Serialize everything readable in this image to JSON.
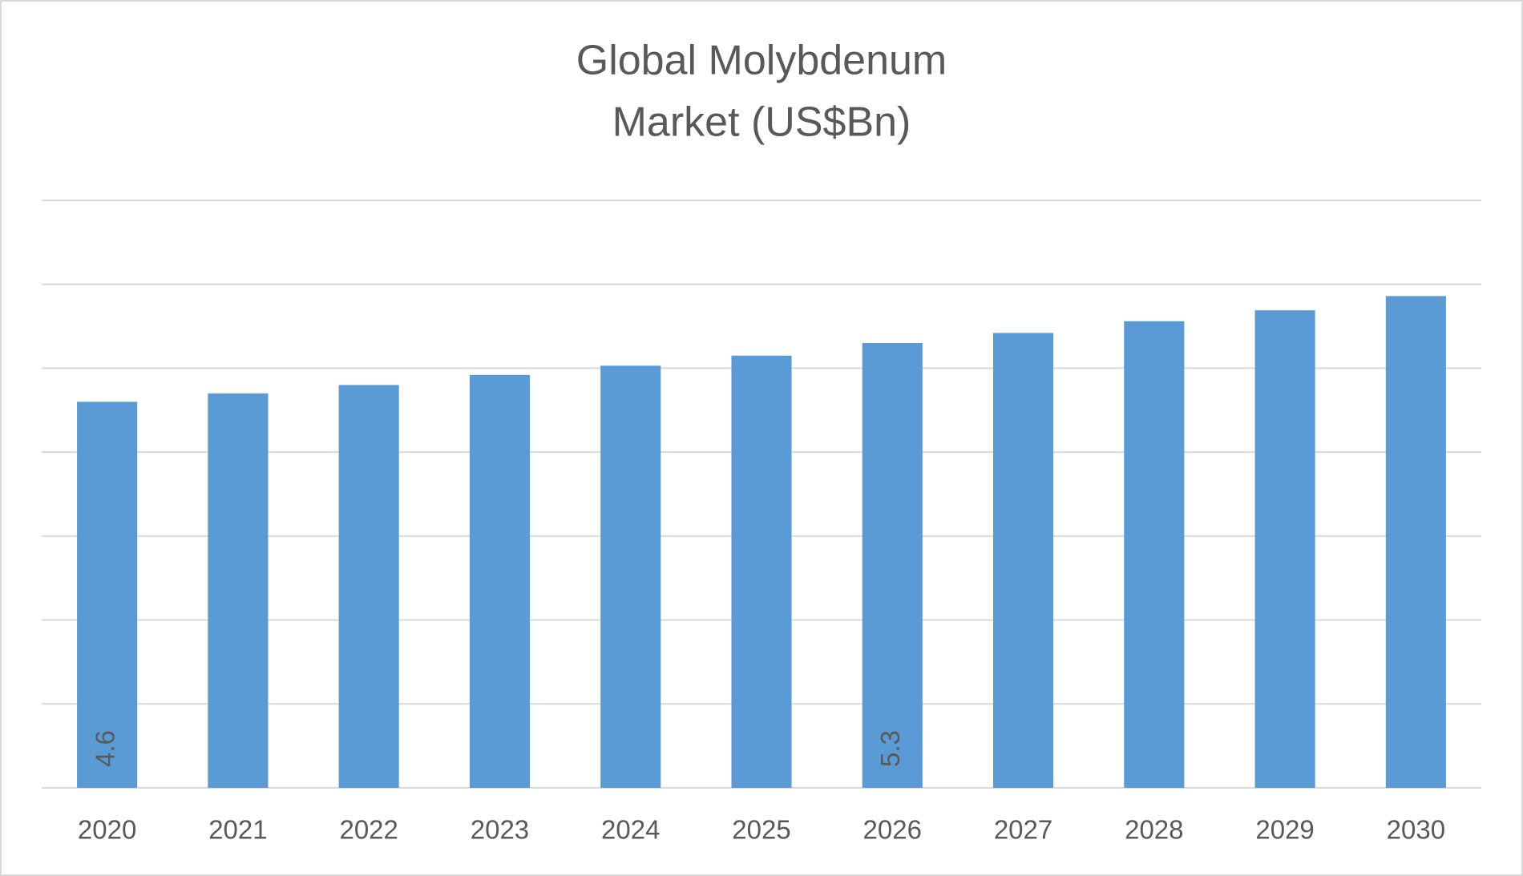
{
  "chart_data": {
    "type": "bar",
    "title": [
      "Global Molybdenum",
      "Market (US$Bn)"
    ],
    "categories": [
      "2020",
      "2021",
      "2022",
      "2023",
      "2024",
      "2025",
      "2026",
      "2027",
      "2028",
      "2029",
      "2030"
    ],
    "values": [
      4.6,
      4.7,
      4.8,
      4.92,
      5.03,
      5.15,
      5.3,
      5.42,
      5.56,
      5.69,
      5.86
    ],
    "value_labels": [
      "4.6",
      null,
      null,
      null,
      null,
      null,
      "5.3",
      null,
      null,
      null,
      null
    ],
    "color": "#5b9bd5",
    "ylim": [
      0,
      7
    ],
    "yticks": [
      0,
      1,
      2,
      3,
      4,
      5,
      6,
      7
    ],
    "grid": true,
    "show_ytick_labels": false
  }
}
